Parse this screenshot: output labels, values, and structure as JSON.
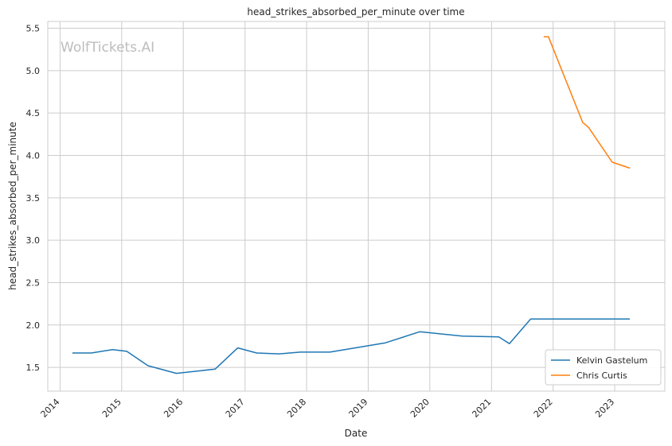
{
  "chart_data": {
    "type": "line",
    "title": "head_strikes_absorbed_per_minute over time",
    "xlabel": "Date",
    "ylabel": "head_strikes_absorbed_per_minute",
    "watermark": "WolfTickets.AI",
    "x_ticks": [
      "2014",
      "2015",
      "2016",
      "2017",
      "2018",
      "2019",
      "2020",
      "2021",
      "2022",
      "2023"
    ],
    "y_ticks": [
      "1.5",
      "2.0",
      "2.5",
      "3.0",
      "3.5",
      "4.0",
      "4.5",
      "5.0",
      "5.5"
    ],
    "xlim": [
      "2013-10-20",
      "2023-10-25"
    ],
    "ylim": [
      1.22,
      5.58
    ],
    "grid": true,
    "legend_position": "bottom-right",
    "series": [
      {
        "name": "Kelvin Gastelum",
        "color": "#1f77b4",
        "points": [
          {
            "x": "2014-03-15",
            "y": 1.67
          },
          {
            "x": "2014-07-05",
            "y": 1.67
          },
          {
            "x": "2014-11-08",
            "y": 1.71
          },
          {
            "x": "2015-01-31",
            "y": 1.69
          },
          {
            "x": "2015-06-06",
            "y": 1.52
          },
          {
            "x": "2015-11-21",
            "y": 1.43
          },
          {
            "x": "2016-07-08",
            "y": 1.48
          },
          {
            "x": "2016-11-19",
            "y": 1.73
          },
          {
            "x": "2017-03-11",
            "y": 1.67
          },
          {
            "x": "2017-07-22",
            "y": 1.66
          },
          {
            "x": "2017-11-25",
            "y": 1.68
          },
          {
            "x": "2018-05-19",
            "y": 1.68
          },
          {
            "x": "2019-04-13",
            "y": 1.79
          },
          {
            "x": "2019-11-02",
            "y": 1.92
          },
          {
            "x": "2020-07-11",
            "y": 1.87
          },
          {
            "x": "2021-02-13",
            "y": 1.86
          },
          {
            "x": "2021-04-17",
            "y": 1.78
          },
          {
            "x": "2021-08-21",
            "y": 2.07
          },
          {
            "x": "2023-04-01",
            "y": 2.07
          }
        ]
      },
      {
        "name": "Chris Curtis",
        "color": "#ff7f0e",
        "points": [
          {
            "x": "2021-11-06",
            "y": 5.4
          },
          {
            "x": "2021-12-04",
            "y": 5.4
          },
          {
            "x": "2022-06-25",
            "y": 4.39
          },
          {
            "x": "2022-07-30",
            "y": 4.33
          },
          {
            "x": "2022-12-17",
            "y": 3.92
          },
          {
            "x": "2023-04-01",
            "y": 3.85
          }
        ]
      }
    ]
  }
}
